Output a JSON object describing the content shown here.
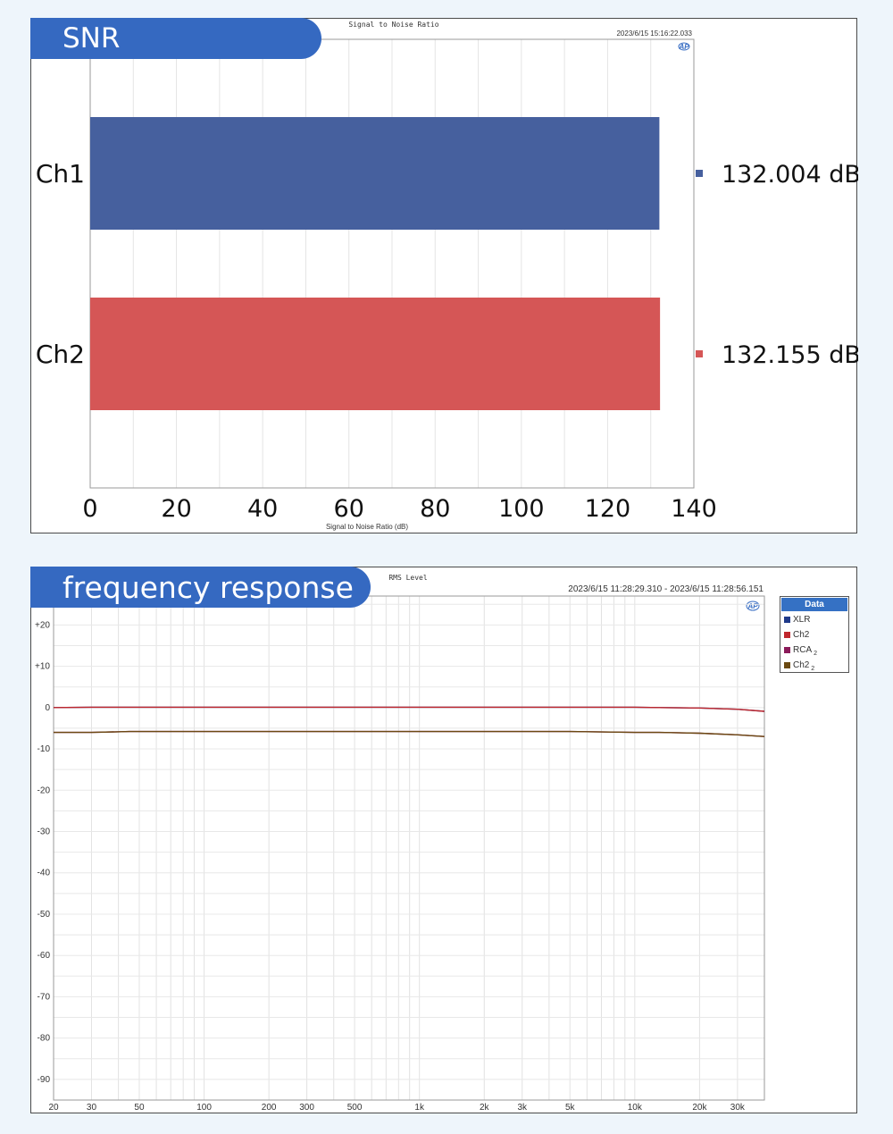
{
  "snr": {
    "banner": "SNR",
    "chart_title": "Signal to Noise Ratio",
    "timestamp": "2023/6/15 15:16:22.033",
    "ap_logo": "AP",
    "chart_data": {
      "type": "bar",
      "orientation": "horizontal",
      "categories": [
        "Ch1",
        "Ch2"
      ],
      "values": [
        132.004,
        132.155
      ],
      "value_labels": [
        "132.004 dB",
        "132.155 dB"
      ],
      "colors": [
        "#46609e",
        "#d55656"
      ],
      "xlabel": "Signal to Noise Ratio (dB)",
      "xlim": [
        0,
        140
      ],
      "xticks": [
        0,
        20,
        40,
        60,
        80,
        100,
        120,
        140
      ],
      "grid": true
    }
  },
  "fr": {
    "banner": "frequency response",
    "chart_title": "RMS Level",
    "timestamp": "2023/6/15 11:28:29.310 -   2023/6/15 11:28:56.151",
    "ap_logo": "AP",
    "legend": {
      "title": "Data",
      "items": [
        {
          "label": "XLR",
          "sub": "",
          "color": "#1f3a8a"
        },
        {
          "label": "Ch2",
          "sub": "",
          "color": "#c0272d"
        },
        {
          "label": "RCA",
          "sub": "2",
          "color": "#8b1a5a"
        },
        {
          "label": "Ch2",
          "sub": "2",
          "color": "#6b4a12"
        }
      ]
    },
    "chart_data": {
      "type": "line",
      "x_scale": "log",
      "xlim": [
        20,
        40000
      ],
      "ylim": [
        -95,
        27
      ],
      "xtick_values": [
        20,
        30,
        50,
        100,
        200,
        300,
        500,
        1000,
        2000,
        3000,
        5000,
        10000,
        20000,
        30000
      ],
      "xtick_labels": [
        "20",
        "30",
        "50",
        "100",
        "200",
        "300",
        "500",
        "1k",
        "2k",
        "3k",
        "5k",
        "10k",
        "20k",
        "30k"
      ],
      "yticks": [
        20,
        10,
        0,
        -10,
        -20,
        -30,
        -40,
        -50,
        -60,
        -70,
        -80,
        -90
      ],
      "ytick_labels": [
        "+20",
        "+10",
        "0",
        "-10",
        "-20",
        "-30",
        "-40",
        "-50",
        "-60",
        "-70",
        "-80",
        "-90"
      ],
      "grid": true,
      "series": [
        {
          "name": "XLR",
          "color": "#1f3a8a",
          "x": [
            20,
            30,
            100,
            1000,
            10000,
            13000,
            20000,
            30000,
            40000
          ],
          "y": [
            0,
            0.1,
            0.1,
            0.1,
            0.1,
            0,
            -0.1,
            -0.4,
            -0.9
          ]
        },
        {
          "name": "Ch2",
          "color": "#c0272d",
          "x": [
            20,
            30,
            100,
            1000,
            10000,
            13000,
            20000,
            30000,
            40000
          ],
          "y": [
            0,
            0.1,
            0.1,
            0.1,
            0.1,
            0,
            -0.1,
            -0.4,
            -0.9
          ]
        },
        {
          "name": "RCA",
          "color": "#8b1a5a",
          "x": [
            20,
            30,
            45,
            100,
            1000,
            5000,
            10000,
            13000,
            20000,
            30000,
            40000
          ],
          "y": [
            -6,
            -6,
            -5.8,
            -5.8,
            -5.8,
            -5.8,
            -6,
            -6,
            -6.2,
            -6.6,
            -7
          ]
        },
        {
          "name": "Ch2",
          "color": "#6b4a12",
          "x": [
            20,
            30,
            45,
            100,
            1000,
            5000,
            10000,
            13000,
            20000,
            30000,
            40000
          ],
          "y": [
            -6,
            -6,
            -5.8,
            -5.8,
            -5.8,
            -5.8,
            -6,
            -6,
            -6.2,
            -6.6,
            -7
          ]
        }
      ]
    }
  }
}
